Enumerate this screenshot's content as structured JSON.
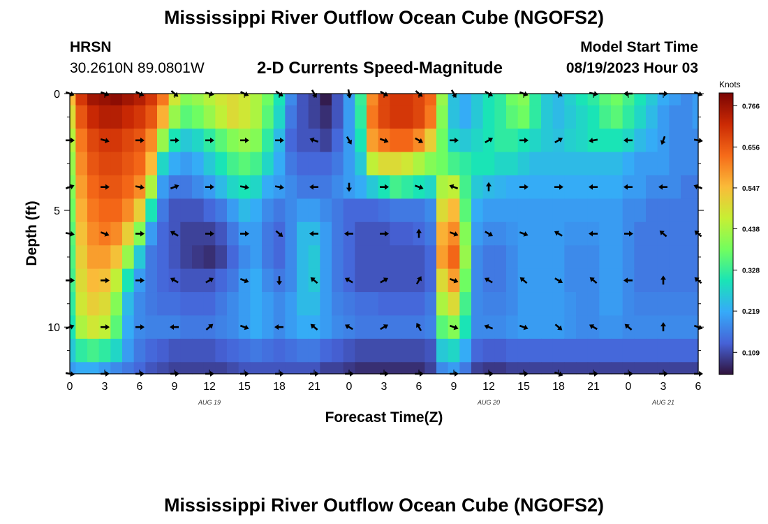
{
  "page": {
    "title": "Mississippi River Outflow Ocean Cube (NGOFS2)",
    "footer_title": "Mississippi River Outflow Ocean Cube (NGOFS2)",
    "station": "HRSN",
    "coordinates": "30.2610N  89.0801W",
    "subtitle": "2-D Currents Speed-Magnitude",
    "model_start_label": "Model Start Time",
    "model_start_time": "08/19/2023 Hour 03"
  },
  "chart_data": {
    "type": "heatmap",
    "title": "2-D Currents Speed-Magnitude",
    "xlabel": "Forecast Time(Z)",
    "ylabel": "Depth (ft)",
    "x_hours": [
      0,
      1,
      2,
      3,
      4,
      5,
      6,
      7,
      8,
      9,
      10,
      11,
      12,
      13,
      14,
      15,
      16,
      17,
      18,
      19,
      20,
      21,
      22,
      23,
      24,
      25,
      26,
      27,
      28,
      29,
      30,
      31,
      32,
      33,
      34,
      35,
      36,
      37,
      38,
      39,
      40,
      41,
      42,
      43,
      44,
      45,
      46,
      47,
      48,
      49,
      50,
      51,
      52,
      53,
      54
    ],
    "xlim": [
      0,
      54
    ],
    "ylim": [
      0,
      12
    ],
    "y_reversed": true,
    "x_tick_labels": [
      "0",
      "3",
      "6",
      "9",
      "12",
      "15",
      "18",
      "21",
      "0",
      "3",
      "6",
      "9",
      "12",
      "15",
      "18",
      "21",
      "0",
      "3",
      "6"
    ],
    "x_tick_hours": [
      0,
      3,
      6,
      9,
      12,
      15,
      18,
      21,
      24,
      27,
      30,
      33,
      36,
      39,
      42,
      45,
      48,
      51,
      54
    ],
    "y_ticks": [
      0,
      5,
      10
    ],
    "date_labels": [
      {
        "text": "AUG 19",
        "hour": 12
      },
      {
        "text": "AUG 20",
        "hour": 36
      },
      {
        "text": "AUG 21",
        "hour": 51
      }
    ],
    "colorbar": {
      "label": "Knots",
      "min": 0.05,
      "max": 0.8,
      "ticks": [
        "0.766",
        "0.656",
        "0.547",
        "0.438",
        "0.328",
        "0.219",
        "0.109"
      ],
      "colors": [
        "#30123b",
        "#4662d7",
        "#36aaf9",
        "#1ae4b6",
        "#72fe5e",
        "#c7ef34",
        "#fabb39",
        "#f66b19",
        "#cb2a04",
        "#7a0403"
      ]
    },
    "depth_rows": [
      {
        "depth": 0,
        "speeds": [
          0.55,
          0.7,
          0.76,
          0.77,
          0.78,
          0.76,
          0.74,
          0.7,
          0.62,
          0.48,
          0.4,
          0.42,
          0.45,
          0.48,
          0.5,
          0.48,
          0.44,
          0.38,
          0.3,
          0.18,
          0.12,
          0.1,
          0.06,
          0.12,
          0.2,
          0.33,
          0.6,
          0.68,
          0.7,
          0.7,
          0.68,
          0.64,
          0.42,
          0.25,
          0.22,
          0.26,
          0.3,
          0.32,
          0.38,
          0.4,
          0.32,
          0.26,
          0.24,
          0.27,
          0.3,
          0.32,
          0.36,
          0.38,
          0.34,
          0.3,
          0.26,
          0.22,
          0.2,
          0.18,
          0.2
        ]
      },
      {
        "depth": 1,
        "speeds": [
          0.5,
          0.66,
          0.72,
          0.74,
          0.74,
          0.72,
          0.7,
          0.66,
          0.56,
          0.42,
          0.36,
          0.38,
          0.42,
          0.46,
          0.5,
          0.48,
          0.44,
          0.36,
          0.28,
          0.16,
          0.12,
          0.1,
          0.08,
          0.12,
          0.2,
          0.32,
          0.62,
          0.68,
          0.7,
          0.7,
          0.68,
          0.62,
          0.4,
          0.25,
          0.22,
          0.26,
          0.3,
          0.32,
          0.36,
          0.38,
          0.32,
          0.26,
          0.24,
          0.26,
          0.28,
          0.3,
          0.34,
          0.36,
          0.32,
          0.28,
          0.24,
          0.2,
          0.18,
          0.18,
          0.2
        ]
      },
      {
        "depth": 2,
        "speeds": [
          0.45,
          0.62,
          0.68,
          0.7,
          0.7,
          0.68,
          0.66,
          0.6,
          0.42,
          0.3,
          0.26,
          0.28,
          0.32,
          0.36,
          0.4,
          0.42,
          0.4,
          0.32,
          0.24,
          0.14,
          0.12,
          0.12,
          0.1,
          0.14,
          0.2,
          0.3,
          0.58,
          0.62,
          0.64,
          0.64,
          0.6,
          0.52,
          0.38,
          0.28,
          0.26,
          0.28,
          0.3,
          0.32,
          0.32,
          0.3,
          0.28,
          0.26,
          0.25,
          0.27,
          0.28,
          0.3,
          0.3,
          0.3,
          0.28,
          0.24,
          0.22,
          0.2,
          0.18,
          0.18,
          0.18
        ]
      },
      {
        "depth": 3,
        "speeds": [
          0.42,
          0.6,
          0.66,
          0.68,
          0.68,
          0.66,
          0.64,
          0.55,
          0.28,
          0.22,
          0.2,
          0.22,
          0.26,
          0.3,
          0.34,
          0.36,
          0.34,
          0.28,
          0.22,
          0.16,
          0.14,
          0.14,
          0.14,
          0.16,
          0.2,
          0.26,
          0.46,
          0.5,
          0.5,
          0.48,
          0.44,
          0.4,
          0.38,
          0.34,
          0.32,
          0.3,
          0.3,
          0.28,
          0.28,
          0.26,
          0.24,
          0.24,
          0.24,
          0.24,
          0.24,
          0.24,
          0.24,
          0.24,
          0.22,
          0.2,
          0.2,
          0.2,
          0.18,
          0.18,
          0.18
        ]
      },
      {
        "depth": 4,
        "speeds": [
          0.4,
          0.58,
          0.64,
          0.66,
          0.66,
          0.64,
          0.6,
          0.44,
          0.2,
          0.16,
          0.16,
          0.18,
          0.2,
          0.24,
          0.28,
          0.3,
          0.28,
          0.22,
          0.2,
          0.18,
          0.16,
          0.16,
          0.16,
          0.18,
          0.2,
          0.22,
          0.26,
          0.3,
          0.34,
          0.32,
          0.3,
          0.28,
          0.44,
          0.46,
          0.34,
          0.26,
          0.24,
          0.23,
          0.22,
          0.22,
          0.22,
          0.22,
          0.22,
          0.22,
          0.22,
          0.22,
          0.22,
          0.22,
          0.2,
          0.2,
          0.18,
          0.18,
          0.18,
          0.16,
          0.16
        ]
      },
      {
        "depth": 5,
        "speeds": [
          0.38,
          0.56,
          0.62,
          0.64,
          0.64,
          0.6,
          0.52,
          0.3,
          0.16,
          0.12,
          0.12,
          0.12,
          0.14,
          0.16,
          0.2,
          0.24,
          0.22,
          0.18,
          0.16,
          0.18,
          0.2,
          0.2,
          0.18,
          0.16,
          0.14,
          0.14,
          0.14,
          0.15,
          0.16,
          0.16,
          0.16,
          0.18,
          0.5,
          0.55,
          0.36,
          0.22,
          0.2,
          0.2,
          0.2,
          0.2,
          0.2,
          0.2,
          0.2,
          0.2,
          0.2,
          0.2,
          0.2,
          0.2,
          0.18,
          0.18,
          0.16,
          0.16,
          0.16,
          0.16,
          0.16
        ]
      },
      {
        "depth": 6,
        "speeds": [
          0.36,
          0.54,
          0.6,
          0.62,
          0.6,
          0.52,
          0.4,
          0.2,
          0.14,
          0.12,
          0.1,
          0.1,
          0.1,
          0.12,
          0.16,
          0.2,
          0.2,
          0.16,
          0.14,
          0.18,
          0.24,
          0.24,
          0.2,
          0.16,
          0.14,
          0.12,
          0.12,
          0.12,
          0.13,
          0.13,
          0.14,
          0.16,
          0.56,
          0.6,
          0.4,
          0.2,
          0.18,
          0.18,
          0.19,
          0.2,
          0.2,
          0.2,
          0.2,
          0.19,
          0.19,
          0.19,
          0.2,
          0.2,
          0.18,
          0.16,
          0.16,
          0.16,
          0.16,
          0.16,
          0.16
        ]
      },
      {
        "depth": 7,
        "speeds": [
          0.35,
          0.52,
          0.58,
          0.58,
          0.54,
          0.42,
          0.26,
          0.16,
          0.14,
          0.12,
          0.1,
          0.09,
          0.08,
          0.1,
          0.14,
          0.18,
          0.2,
          0.16,
          0.14,
          0.18,
          0.24,
          0.26,
          0.2,
          0.16,
          0.14,
          0.12,
          0.12,
          0.12,
          0.12,
          0.12,
          0.12,
          0.14,
          0.58,
          0.64,
          0.42,
          0.18,
          0.16,
          0.16,
          0.18,
          0.2,
          0.2,
          0.2,
          0.2,
          0.18,
          0.18,
          0.18,
          0.2,
          0.2,
          0.18,
          0.16,
          0.16,
          0.16,
          0.16,
          0.16,
          0.16
        ]
      },
      {
        "depth": 8,
        "speeds": [
          0.34,
          0.5,
          0.55,
          0.54,
          0.46,
          0.3,
          0.2,
          0.16,
          0.14,
          0.13,
          0.12,
          0.12,
          0.12,
          0.14,
          0.16,
          0.2,
          0.22,
          0.18,
          0.16,
          0.18,
          0.24,
          0.26,
          0.2,
          0.16,
          0.14,
          0.12,
          0.12,
          0.12,
          0.12,
          0.12,
          0.12,
          0.14,
          0.5,
          0.58,
          0.38,
          0.18,
          0.16,
          0.16,
          0.18,
          0.2,
          0.2,
          0.2,
          0.2,
          0.18,
          0.18,
          0.18,
          0.2,
          0.2,
          0.18,
          0.16,
          0.16,
          0.16,
          0.16,
          0.16,
          0.16
        ]
      },
      {
        "depth": 9,
        "speeds": [
          0.32,
          0.48,
          0.52,
          0.5,
          0.4,
          0.24,
          0.18,
          0.16,
          0.15,
          0.15,
          0.14,
          0.14,
          0.14,
          0.16,
          0.18,
          0.2,
          0.22,
          0.2,
          0.18,
          0.2,
          0.24,
          0.24,
          0.2,
          0.17,
          0.16,
          0.15,
          0.15,
          0.14,
          0.14,
          0.14,
          0.14,
          0.16,
          0.44,
          0.5,
          0.34,
          0.18,
          0.17,
          0.17,
          0.18,
          0.2,
          0.2,
          0.2,
          0.2,
          0.19,
          0.18,
          0.18,
          0.2,
          0.2,
          0.18,
          0.17,
          0.17,
          0.17,
          0.17,
          0.17,
          0.17
        ]
      },
      {
        "depth": 10,
        "speeds": [
          0.3,
          0.44,
          0.48,
          0.46,
          0.36,
          0.22,
          0.18,
          0.17,
          0.17,
          0.17,
          0.16,
          0.16,
          0.16,
          0.17,
          0.18,
          0.2,
          0.22,
          0.2,
          0.18,
          0.2,
          0.22,
          0.22,
          0.2,
          0.18,
          0.17,
          0.16,
          0.16,
          0.16,
          0.16,
          0.16,
          0.16,
          0.17,
          0.36,
          0.4,
          0.3,
          0.18,
          0.18,
          0.18,
          0.19,
          0.2,
          0.2,
          0.2,
          0.2,
          0.19,
          0.18,
          0.18,
          0.19,
          0.19,
          0.18,
          0.18,
          0.18,
          0.18,
          0.18,
          0.18,
          0.18
        ]
      },
      {
        "depth": 11,
        "speeds": [
          0.26,
          0.32,
          0.34,
          0.32,
          0.28,
          0.2,
          0.16,
          0.14,
          0.13,
          0.12,
          0.12,
          0.12,
          0.12,
          0.13,
          0.14,
          0.15,
          0.16,
          0.15,
          0.14,
          0.15,
          0.16,
          0.16,
          0.14,
          0.13,
          0.12,
          0.11,
          0.11,
          0.11,
          0.11,
          0.11,
          0.11,
          0.12,
          0.26,
          0.28,
          0.22,
          0.14,
          0.13,
          0.13,
          0.14,
          0.14,
          0.14,
          0.14,
          0.14,
          0.14,
          0.14,
          0.14,
          0.14,
          0.14,
          0.14,
          0.14,
          0.14,
          0.14,
          0.14,
          0.14,
          0.14
        ]
      },
      {
        "depth": 12,
        "speeds": [
          0.2,
          0.22,
          0.22,
          0.2,
          0.18,
          0.16,
          0.14,
          0.12,
          0.11,
          0.1,
          0.1,
          0.1,
          0.1,
          0.1,
          0.11,
          0.12,
          0.12,
          0.12,
          0.12,
          0.12,
          0.12,
          0.12,
          0.1,
          0.1,
          0.09,
          0.08,
          0.08,
          0.08,
          0.08,
          0.08,
          0.08,
          0.1,
          0.18,
          0.2,
          0.16,
          0.1,
          0.09,
          0.09,
          0.1,
          0.1,
          0.1,
          0.1,
          0.1,
          0.1,
          0.1,
          0.1,
          0.1,
          0.1,
          0.1,
          0.1,
          0.1,
          0.1,
          0.1,
          0.1,
          0.1
        ]
      }
    ],
    "arrow_depths": [
      0,
      2,
      4,
      6,
      8,
      10,
      12
    ],
    "arrow_hours": [
      0,
      3,
      6,
      9,
      12,
      15,
      18,
      21,
      24,
      27,
      30,
      33,
      36,
      39,
      42,
      45,
      48,
      51,
      54
    ],
    "arrow_directions_deg": [
      [
        20,
        20,
        25,
        40,
        15,
        25,
        35,
        60,
        80,
        30,
        40,
        60,
        30,
        20,
        35,
        10,
        180,
        0,
        20
      ],
      [
        0,
        15,
        0,
        0,
        0,
        0,
        0,
        200,
        60,
        20,
        30,
        0,
        330,
        0,
        330,
        170,
        180,
        110,
        10
      ],
      [
        340,
        0,
        10,
        340,
        0,
        10,
        10,
        180,
        90,
        0,
        20,
        200,
        270,
        0,
        0,
        180,
        180,
        180,
        200
      ],
      [
        10,
        20,
        0,
        210,
        0,
        0,
        40,
        180,
        180,
        0,
        270,
        20,
        30,
        20,
        210,
        180,
        0,
        220,
        220
      ],
      [
        0,
        0,
        0,
        210,
        330,
        20,
        90,
        220,
        210,
        330,
        300,
        20,
        210,
        220,
        30,
        220,
        180,
        270,
        220
      ],
      [
        340,
        0,
        0,
        180,
        320,
        20,
        180,
        220,
        210,
        330,
        240,
        20,
        200,
        20,
        40,
        210,
        220,
        270,
        20
      ],
      [
        10,
        0,
        0,
        0,
        0,
        0,
        0,
        0,
        0,
        0,
        0,
        0,
        0,
        0,
        20,
        0,
        0,
        0,
        0
      ]
    ]
  }
}
